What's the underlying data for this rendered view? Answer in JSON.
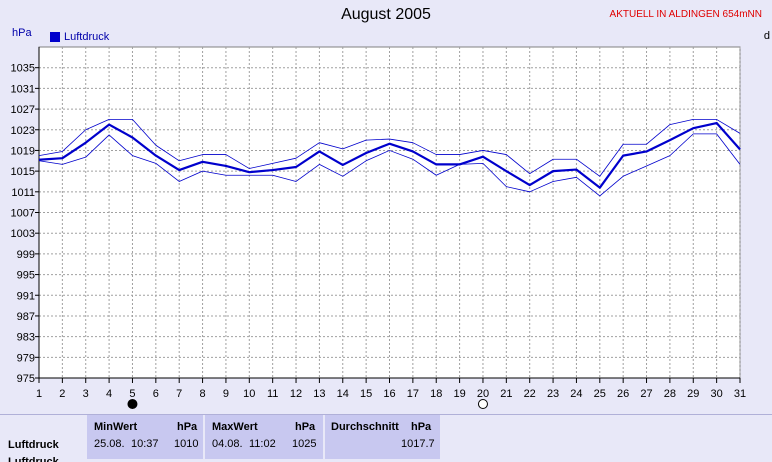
{
  "header": {
    "title": "August 2005",
    "aktuell": "AKTUELL IN ALDINGEN 654mNN",
    "unit": "hPa",
    "legend_label": "Luftdruck",
    "edge_letter": "d"
  },
  "chart_data": {
    "type": "line",
    "title": "August 2005",
    "ylabel": "hPa",
    "xlabel": "",
    "ylim": [
      975,
      1039
    ],
    "xlim": [
      1,
      31
    ],
    "yticks": [
      975,
      979,
      983,
      987,
      991,
      995,
      999,
      1003,
      1007,
      1011,
      1015,
      1019,
      1023,
      1027,
      1031,
      1035
    ],
    "x": [
      1,
      2,
      3,
      4,
      5,
      6,
      7,
      8,
      9,
      10,
      11,
      12,
      13,
      14,
      15,
      16,
      17,
      18,
      19,
      20,
      21,
      22,
      23,
      24,
      25,
      26,
      27,
      28,
      29,
      30,
      31
    ],
    "grid": true,
    "legend_position": "top-left",
    "series": [
      {
        "name": "Luftdruck",
        "role": "mean",
        "color": "#0000cc",
        "values": [
          1017.2,
          1017.5,
          1020.5,
          1024.0,
          1021.5,
          1018.0,
          1015.2,
          1016.8,
          1016.0,
          1014.8,
          1015.2,
          1015.8,
          1018.8,
          1016.2,
          1018.5,
          1020.3,
          1018.8,
          1016.3,
          1016.3,
          1017.8,
          1015.0,
          1012.3,
          1015.0,
          1015.3,
          1011.8,
          1018.0,
          1018.8,
          1021.0,
          1023.3,
          1024.3,
          1019.2
        ]
      },
      {
        "role": "max",
        "color": "#0000cc",
        "values": [
          1018.0,
          1018.8,
          1023.0,
          1025.0,
          1025.0,
          1020.0,
          1017.0,
          1018.2,
          1018.2,
          1015.5,
          1016.5,
          1017.5,
          1020.5,
          1019.3,
          1021.0,
          1021.2,
          1020.5,
          1018.2,
          1018.2,
          1019.0,
          1018.2,
          1014.5,
          1017.3,
          1017.3,
          1014.0,
          1020.2,
          1020.2,
          1024.0,
          1025.0,
          1025.0,
          1022.3
        ]
      },
      {
        "role": "min",
        "color": "#0000cc",
        "values": [
          1017.0,
          1016.3,
          1017.7,
          1022.0,
          1018.0,
          1016.5,
          1013.0,
          1015.0,
          1014.2,
          1014.2,
          1014.2,
          1013.0,
          1016.3,
          1014.0,
          1017.0,
          1019.0,
          1017.3,
          1014.2,
          1016.3,
          1016.5,
          1012.0,
          1011.0,
          1013.0,
          1013.8,
          1010.2,
          1014.0,
          1016.0,
          1018.0,
          1022.2,
          1022.2,
          1016.3
        ]
      }
    ],
    "markers": [
      {
        "x": 5,
        "symbol": "new-moon"
      },
      {
        "x": 20,
        "symbol": "full-moon"
      }
    ]
  },
  "stats": {
    "row_label": "Luftdruck",
    "row_label_2": "Luftdruck",
    "min": {
      "header": "MinWert",
      "unit": "hPa",
      "date": "25.08.",
      "time": "10:37",
      "value": "1010"
    },
    "max": {
      "header": "MaxWert",
      "unit": "hPa",
      "date": "04.08.",
      "time": "11:02",
      "value": "1025"
    },
    "avg": {
      "header": "Durchschnitt",
      "unit": "hPa",
      "value": "1017.7"
    }
  }
}
